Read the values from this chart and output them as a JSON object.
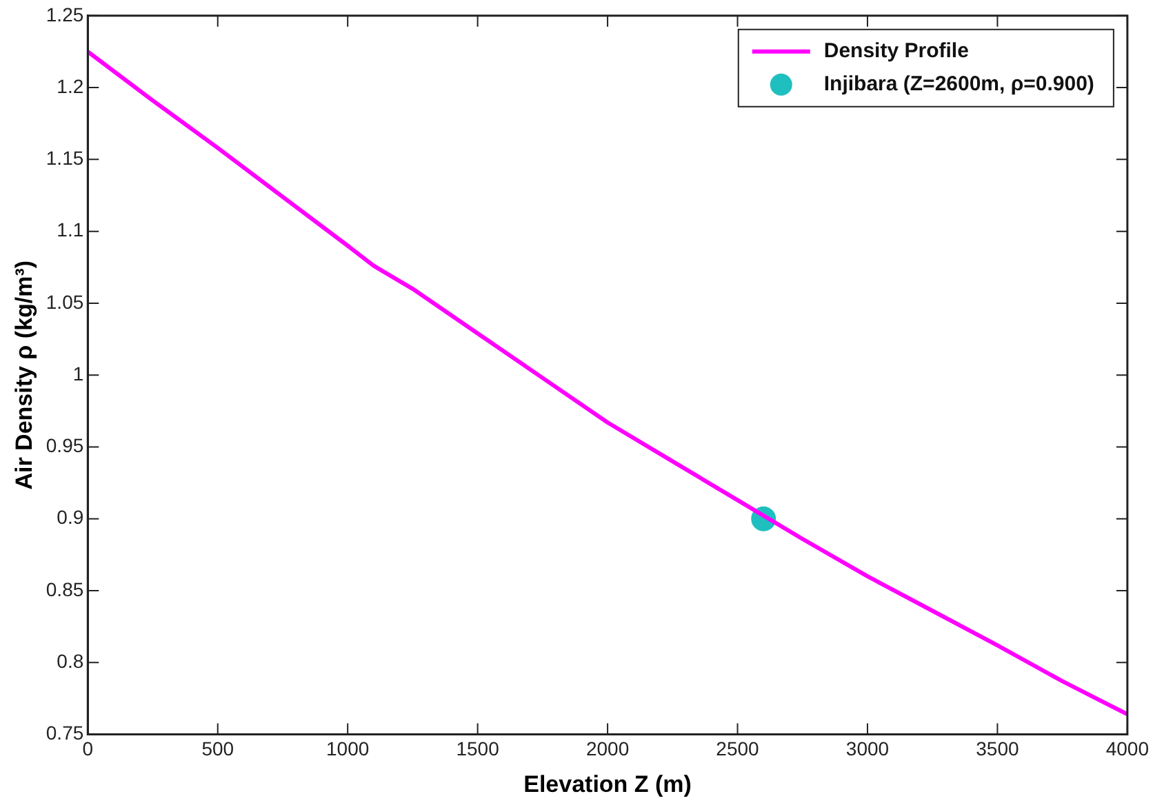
{
  "chart_data": {
    "type": "line",
    "xlabel": "Elevation Z (m)",
    "ylabel": "Air Density ρ (kg/m³)",
    "xlim": [
      0,
      4000
    ],
    "xticks": [
      0,
      500,
      1000,
      1500,
      2000,
      2500,
      3000,
      3500,
      4000
    ],
    "ylim": [
      0.75,
      1.25
    ],
    "yticks": [
      0.75,
      0.8,
      0.85,
      0.9,
      0.95,
      1,
      1.05,
      1.1,
      1.15,
      1.2,
      1.25
    ],
    "grid": false,
    "legend": "top right",
    "line_style": "solid",
    "series": [
      {
        "name": "Density Profile",
        "color": "#ff00ff",
        "x": [
          0,
          250,
          500,
          750,
          1000,
          1100,
          1250,
          1500,
          1750,
          2000,
          2250,
          2500,
          2750,
          3000,
          3250,
          3500,
          3750,
          4000
        ],
        "values": [
          1.225,
          1.191,
          1.158,
          1.124,
          1.09,
          1.076,
          1.06,
          1.029,
          0.998,
          0.967,
          0.94,
          0.913,
          0.886,
          0.86,
          0.836,
          0.812,
          0.787,
          0.764
        ]
      },
      {
        "name": "Injibara (Z=2600m, ρ=0.900)",
        "type": "scatter",
        "marker": "circle",
        "color": "#1fbfbf",
        "x": [
          2600
        ],
        "values": [
          0.9
        ]
      }
    ]
  }
}
